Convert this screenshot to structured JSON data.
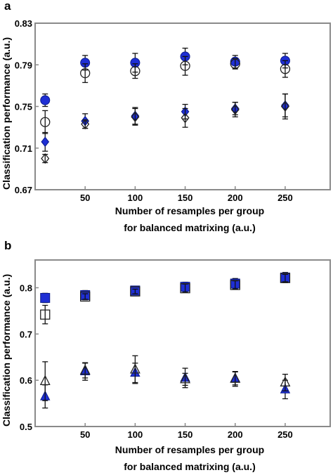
{
  "chart_data": [
    {
      "panel_label": "a",
      "type": "scatter",
      "xlabel": [
        "Number of resamples per group",
        "for balanced matrixing (a.u.)"
      ],
      "ylabel": "Classification performance (a.u.)",
      "xlim": [
        0,
        295
      ],
      "ylim": [
        0.67,
        0.83
      ],
      "xticks": [
        50,
        100,
        150,
        200,
        250
      ],
      "yticks": [
        0.67,
        0.71,
        0.75,
        0.79,
        0.83
      ],
      "ytick_labels": [
        "0.67",
        "0.71",
        "0.75",
        "0.79",
        "0.83"
      ],
      "grid": false,
      "legend": "none",
      "series": [
        {
          "marker": "circle",
          "fill": "#1f2fd4",
          "x": [
            10,
            50,
            100,
            150,
            200,
            250
          ],
          "y": [
            0.756,
            0.792,
            0.792,
            0.798,
            0.793,
            0.794
          ],
          "err": [
            0.006,
            0.007,
            0.009,
            0.008,
            0.006,
            0.007
          ]
        },
        {
          "marker": "circle",
          "fill": "none",
          "x": [
            10,
            50,
            100,
            150,
            200,
            250
          ],
          "y": [
            0.735,
            0.782,
            0.784,
            0.789,
            0.791,
            0.786
          ],
          "err": [
            0.011,
            0.009,
            0.007,
            0.009,
            0.005,
            0.008
          ]
        },
        {
          "marker": "diamond",
          "fill": "#1f2fd4",
          "x": [
            10,
            50,
            100,
            150,
            200,
            250
          ],
          "y": [
            0.716,
            0.736,
            0.741,
            0.745,
            0.748,
            0.751
          ],
          "err": [
            0.009,
            0.007,
            0.008,
            0.007,
            0.006,
            0.011
          ]
        },
        {
          "marker": "diamond",
          "fill": "none",
          "x": [
            10,
            50,
            100,
            150,
            200,
            250
          ],
          "y": [
            0.7,
            0.733,
            0.74,
            0.739,
            0.747,
            0.75
          ],
          "err": [
            0.004,
            0.004,
            0.008,
            0.009,
            0.007,
            0.012
          ]
        }
      ]
    },
    {
      "panel_label": "b",
      "type": "scatter",
      "xlabel": [
        "Number of resamples per group",
        "for balanced matrixing (a.u.)"
      ],
      "ylabel": "Classification performance (a.u.)",
      "xlim": [
        0,
        295
      ],
      "ylim": [
        0.5,
        0.86
      ],
      "xticks": [
        50,
        100,
        150,
        200,
        250
      ],
      "yticks": [
        0.5,
        0.6,
        0.7,
        0.8
      ],
      "ytick_labels": [
        "0.5",
        "0.6",
        "0.7",
        "0.8"
      ],
      "grid": false,
      "legend": "none",
      "series": [
        {
          "marker": "square",
          "fill": "#1f2fd4",
          "x": [
            10,
            50,
            100,
            150,
            200,
            250
          ],
          "y": [
            0.778,
            0.784,
            0.794,
            0.802,
            0.809,
            0.822
          ],
          "err": [
            0.01,
            0.01,
            0.007,
            0.01,
            0.011,
            0.011
          ]
        },
        {
          "marker": "square",
          "fill": "none",
          "x": [
            10,
            50,
            100,
            150,
            200,
            250
          ],
          "y": [
            0.742,
            0.781,
            0.792,
            0.799,
            0.806,
            0.821
          ],
          "err": [
            0.02,
            0.006,
            0.005,
            0.009,
            0.009,
            0.008
          ]
        },
        {
          "marker": "triangle",
          "fill": "#1f2fd4",
          "x": [
            10,
            50,
            100,
            150,
            200,
            250
          ],
          "y": [
            0.565,
            0.619,
            0.616,
            0.605,
            0.604,
            0.58
          ],
          "err": [
            0.025,
            0.019,
            0.021,
            0.021,
            0.014,
            0.02
          ]
        },
        {
          "marker": "triangle",
          "fill": "none",
          "x": [
            10,
            50,
            100,
            150,
            200,
            250
          ],
          "y": [
            0.598,
            0.621,
            0.623,
            0.602,
            0.603,
            0.595
          ],
          "err": [
            0.042,
            0.016,
            0.03,
            0.013,
            0.016,
            0.018
          ]
        }
      ]
    }
  ]
}
